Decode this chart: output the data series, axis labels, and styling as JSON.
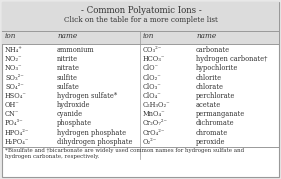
{
  "title": "- Common Polyatomic Ions -",
  "subtitle": "Click on the table for a more complete list",
  "bg_color": "#e8e8e8",
  "border_color": "#999999",
  "left_ions": [
    "NH₄⁺",
    "NO₂⁻",
    "NO₃⁻",
    "SO₃²⁻",
    "SO₄²⁻",
    "HSO₄⁻",
    "OH⁻",
    "CN⁻",
    "PO₄³⁻",
    "HPO₄²⁻",
    "H₂PO₄⁻"
  ],
  "left_names": [
    "ammonium",
    "nitrite",
    "nitrate",
    "sulfite",
    "sulfate",
    "hydrogen sulfate*",
    "hydroxide",
    "cyanide",
    "phosphate",
    "hydrogen phosphate",
    "dihydrogen phosphate"
  ],
  "right_ions": [
    "CO₃²⁻",
    "HCO₃⁻",
    "ClO⁻",
    "ClO₂⁻",
    "ClO₃⁻",
    "ClO₄⁻",
    "C₂H₃O₂⁻",
    "MnO₄⁻",
    "Cr₂O₇²⁻",
    "CrO₄²⁻",
    "O₂²⁻"
  ],
  "right_names": [
    "carbonate",
    "hydrogen carbonate†",
    "hypochlorite",
    "chlorite",
    "chlorate",
    "perchlorate",
    "acetate",
    "permanganate",
    "dichromate",
    "chromate",
    "peroxide"
  ],
  "footnote": "*Bisulfate and †bicarbonate are widely used common names for hydrogen sulfate and\nhydrogen carbonate, respectively.",
  "text_color": "#333333",
  "font_size": 4.8,
  "title_font_size": 6.2,
  "subtitle_font_size": 5.2,
  "header_font_size": 5.2,
  "footnote_font_size": 4.0
}
